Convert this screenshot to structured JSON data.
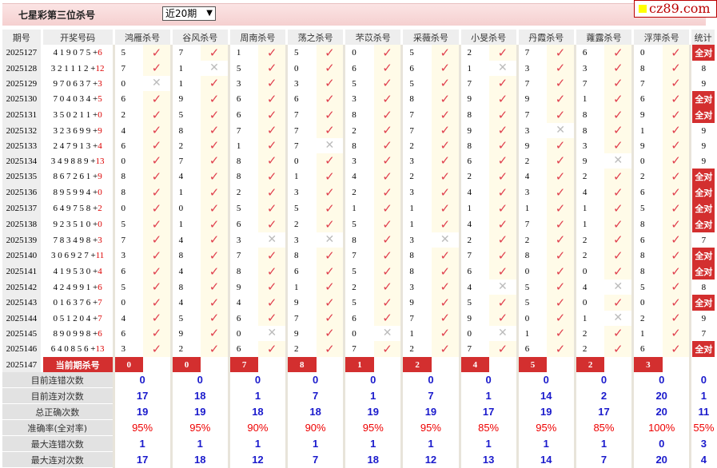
{
  "header": {
    "title": "七星彩第三位杀号",
    "period_select": "近20期",
    "logo": "cz89.com"
  },
  "columns": {
    "period": "期号",
    "draw": "开奖号码",
    "stat": "统计"
  },
  "experts": [
    "鸿雁杀号",
    "谷风杀号",
    "周南杀号",
    "荡之杀号",
    "芣苡杀号",
    "采薇杀号",
    "小旻杀号",
    "丹霞杀号",
    "蕹露杀号",
    "浮萍杀号"
  ],
  "rows": [
    {
      "period": "2025127",
      "draw": "4 1 9 0 7 5 +",
      "extra": "6",
      "kills": [
        "5",
        "7",
        "1",
        "5",
        "0",
        "5",
        "2",
        "7",
        "6",
        "0"
      ],
      "hits": [
        1,
        1,
        1,
        1,
        1,
        1,
        1,
        1,
        1,
        1
      ],
      "stat": "全对"
    },
    {
      "period": "2025128",
      "draw": "3 2 1 1 1 2 +",
      "extra": "12",
      "kills": [
        "7",
        "1",
        "5",
        "0",
        "6",
        "6",
        "1",
        "3",
        "3",
        "8"
      ],
      "hits": [
        1,
        0,
        1,
        1,
        1,
        1,
        0,
        1,
        1,
        1
      ],
      "stat": "8"
    },
    {
      "period": "2025129",
      "draw": "9 7 0 6 3 7 +",
      "extra": "3",
      "kills": [
        "0",
        "1",
        "3",
        "3",
        "5",
        "5",
        "7",
        "7",
        "7",
        "7"
      ],
      "hits": [
        0,
        1,
        1,
        1,
        1,
        1,
        1,
        1,
        1,
        1
      ],
      "stat": "9"
    },
    {
      "period": "2025130",
      "draw": "7 0 4 0 3 4 +",
      "extra": "5",
      "kills": [
        "6",
        "9",
        "6",
        "6",
        "3",
        "8",
        "9",
        "9",
        "1",
        "6"
      ],
      "hits": [
        1,
        1,
        1,
        1,
        1,
        1,
        1,
        1,
        1,
        1
      ],
      "stat": "全对"
    },
    {
      "period": "2025131",
      "draw": "3 5 0 2 1 1 +",
      "extra": "0",
      "kills": [
        "2",
        "5",
        "6",
        "7",
        "8",
        "7",
        "8",
        "7",
        "8",
        "9"
      ],
      "hits": [
        1,
        1,
        1,
        1,
        1,
        1,
        1,
        1,
        1,
        1
      ],
      "stat": "全对"
    },
    {
      "period": "2025132",
      "draw": "3 2 3 6 9 9 +",
      "extra": "9",
      "kills": [
        "4",
        "8",
        "7",
        "7",
        "2",
        "7",
        "9",
        "3",
        "8",
        "1"
      ],
      "hits": [
        1,
        1,
        1,
        1,
        1,
        1,
        1,
        0,
        1,
        1
      ],
      "stat": "9"
    },
    {
      "period": "2025133",
      "draw": "2 4 7 9 1 3 +",
      "extra": "4",
      "kills": [
        "6",
        "2",
        "1",
        "7",
        "8",
        "2",
        "8",
        "9",
        "3",
        "9"
      ],
      "hits": [
        1,
        1,
        1,
        0,
        1,
        1,
        1,
        1,
        1,
        1
      ],
      "stat": "9"
    },
    {
      "period": "2025134",
      "draw": "3 4 9 8 8 9 +",
      "extra": "13",
      "kills": [
        "0",
        "7",
        "8",
        "0",
        "3",
        "3",
        "6",
        "2",
        "9",
        "0"
      ],
      "hits": [
        1,
        1,
        1,
        1,
        1,
        1,
        1,
        1,
        0,
        1
      ],
      "stat": "9"
    },
    {
      "period": "2025135",
      "draw": "8 6 7 2 6 1 +",
      "extra": "9",
      "kills": [
        "8",
        "4",
        "8",
        "1",
        "4",
        "2",
        "2",
        "4",
        "2",
        "2"
      ],
      "hits": [
        1,
        1,
        1,
        1,
        1,
        1,
        1,
        1,
        1,
        1
      ],
      "stat": "全对"
    },
    {
      "period": "2025136",
      "draw": "8 9 5 9 9 4 +",
      "extra": "0",
      "kills": [
        "8",
        "1",
        "2",
        "3",
        "2",
        "3",
        "4",
        "3",
        "4",
        "6"
      ],
      "hits": [
        1,
        1,
        1,
        1,
        1,
        1,
        1,
        1,
        1,
        1
      ],
      "stat": "全对"
    },
    {
      "period": "2025137",
      "draw": "6 4 9 7 5 8 +",
      "extra": "2",
      "kills": [
        "0",
        "0",
        "5",
        "5",
        "1",
        "1",
        "1",
        "1",
        "1",
        "5"
      ],
      "hits": [
        1,
        1,
        1,
        1,
        1,
        1,
        1,
        1,
        1,
        1
      ],
      "stat": "全对"
    },
    {
      "period": "2025138",
      "draw": "9 2 3 5 1 0 +",
      "extra": "0",
      "kills": [
        "5",
        "1",
        "6",
        "2",
        "5",
        "1",
        "4",
        "7",
        "1",
        "8"
      ],
      "hits": [
        1,
        1,
        1,
        1,
        1,
        1,
        1,
        1,
        1,
        1
      ],
      "stat": "全对"
    },
    {
      "period": "2025139",
      "draw": "7 8 3 4 9 8 +",
      "extra": "3",
      "kills": [
        "7",
        "4",
        "3",
        "3",
        "8",
        "3",
        "2",
        "2",
        "2",
        "6"
      ],
      "hits": [
        1,
        1,
        0,
        0,
        1,
        0,
        1,
        1,
        1,
        1
      ],
      "stat": "7"
    },
    {
      "period": "2025140",
      "draw": "3 0 6 9 2 7 +",
      "extra": "11",
      "kills": [
        "3",
        "8",
        "7",
        "8",
        "7",
        "8",
        "7",
        "8",
        "2",
        "8"
      ],
      "hits": [
        1,
        1,
        1,
        1,
        1,
        1,
        1,
        1,
        1,
        1
      ],
      "stat": "全对"
    },
    {
      "period": "2025141",
      "draw": "4 1 9 5 3 0 +",
      "extra": "4",
      "kills": [
        "6",
        "4",
        "8",
        "6",
        "5",
        "8",
        "6",
        "0",
        "0",
        "8"
      ],
      "hits": [
        1,
        1,
        1,
        1,
        1,
        1,
        1,
        1,
        1,
        1
      ],
      "stat": "全对"
    },
    {
      "period": "2025142",
      "draw": "4 2 4 9 9 1 +",
      "extra": "6",
      "kills": [
        "5",
        "8",
        "9",
        "1",
        "2",
        "3",
        "4",
        "5",
        "4",
        "5"
      ],
      "hits": [
        1,
        1,
        1,
        1,
        1,
        1,
        0,
        1,
        0,
        1
      ],
      "stat": "8"
    },
    {
      "period": "2025143",
      "draw": "0 1 6 3 7 6 +",
      "extra": "7",
      "kills": [
        "0",
        "4",
        "4",
        "9",
        "5",
        "9",
        "5",
        "5",
        "0",
        "0"
      ],
      "hits": [
        1,
        1,
        1,
        1,
        1,
        1,
        1,
        1,
        1,
        1
      ],
      "stat": "全对"
    },
    {
      "period": "2025144",
      "draw": "0 5 1 2 0 4 +",
      "extra": "7",
      "kills": [
        "4",
        "5",
        "6",
        "7",
        "6",
        "7",
        "9",
        "0",
        "1",
        "2"
      ],
      "hits": [
        1,
        1,
        1,
        1,
        1,
        1,
        1,
        1,
        0,
        1
      ],
      "stat": "9"
    },
    {
      "period": "2025145",
      "draw": "8 9 0 9 9 8 +",
      "extra": "6",
      "kills": [
        "6",
        "9",
        "0",
        "9",
        "0",
        "1",
        "0",
        "1",
        "2",
        "1"
      ],
      "hits": [
        1,
        1,
        0,
        1,
        0,
        1,
        0,
        1,
        1,
        1
      ],
      "stat": "7"
    },
    {
      "period": "2025146",
      "draw": "6 4 0 8 5 6 +",
      "extra": "13",
      "kills": [
        "3",
        "2",
        "6",
        "2",
        "7",
        "2",
        "7",
        "6",
        "2",
        "6"
      ],
      "hits": [
        1,
        1,
        1,
        1,
        1,
        1,
        1,
        1,
        1,
        1
      ],
      "stat": "全对"
    }
  ],
  "current": {
    "period": "2025147",
    "label": "当前期杀号",
    "kills": [
      "0",
      "0",
      "7",
      "8",
      "1",
      "2",
      "4",
      "5",
      "2",
      "3"
    ]
  },
  "stats": [
    {
      "label": "目前连错次数",
      "values": [
        "0",
        "0",
        "0",
        "0",
        "0",
        "0",
        "0",
        "0",
        "0",
        "0",
        "0"
      ]
    },
    {
      "label": "目前连对次数",
      "values": [
        "17",
        "18",
        "1",
        "7",
        "1",
        "7",
        "1",
        "14",
        "2",
        "20",
        "1"
      ]
    },
    {
      "label": "总正确次数",
      "values": [
        "19",
        "19",
        "18",
        "18",
        "19",
        "19",
        "17",
        "19",
        "17",
        "20",
        "11"
      ]
    },
    {
      "label": "准确率(全对率)",
      "values": [
        "95%",
        "95%",
        "90%",
        "90%",
        "95%",
        "95%",
        "85%",
        "95%",
        "85%",
        "100%",
        "55%"
      ],
      "pct": true
    },
    {
      "label": "最大连错次数",
      "values": [
        "1",
        "1",
        "1",
        "1",
        "1",
        "1",
        "1",
        "1",
        "1",
        "0",
        "3"
      ]
    },
    {
      "label": "最大连对次数",
      "values": [
        "17",
        "18",
        "12",
        "7",
        "18",
        "12",
        "13",
        "14",
        "7",
        "20",
        "4"
      ]
    }
  ],
  "icons": {
    "hit": "check-icon",
    "miss": "cross-icon"
  },
  "colors": {
    "accent": "#d32f2f",
    "check": "#e0404e",
    "stat_value": "#1a1acc",
    "pct": "#e00000"
  }
}
